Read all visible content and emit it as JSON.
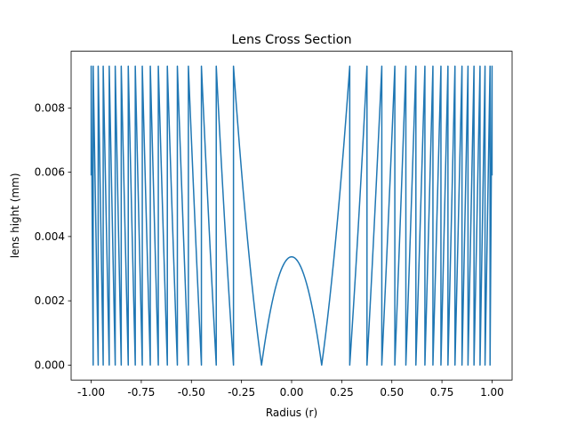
{
  "chart_data": {
    "type": "line",
    "title": "Lens Cross Section",
    "xlabel": "Radius (r)",
    "ylabel": "lens hight (mm)",
    "xlim": [
      -1.1,
      1.1
    ],
    "ylim": [
      -0.000465,
      0.009765
    ],
    "x_ticks": [
      "-1.00",
      "-0.75",
      "-0.50",
      "-0.25",
      "0.00",
      "0.25",
      "0.50",
      "0.75",
      "1.00"
    ],
    "y_ticks": [
      "0.000",
      "0.002",
      "0.004",
      "0.006",
      "0.008"
    ],
    "grid": false,
    "legend": "none",
    "line_color": "#1f77b4",
    "series": [
      {
        "profile": "fresnel-sawtooth",
        "x_range": [
          -1.0,
          1.0
        ],
        "zone_boundaries_r": [
          0.15,
          0.29,
          0.376,
          0.45,
          0.515,
          0.57,
          0.62,
          0.665,
          0.705,
          0.745,
          0.78,
          0.815,
          0.85,
          0.88,
          0.91,
          0.94,
          0.965,
          0.99
        ],
        "zone_max_height": 0.0093,
        "center_peak_height": 0.00337,
        "edge_height": 0.0059
      }
    ]
  }
}
